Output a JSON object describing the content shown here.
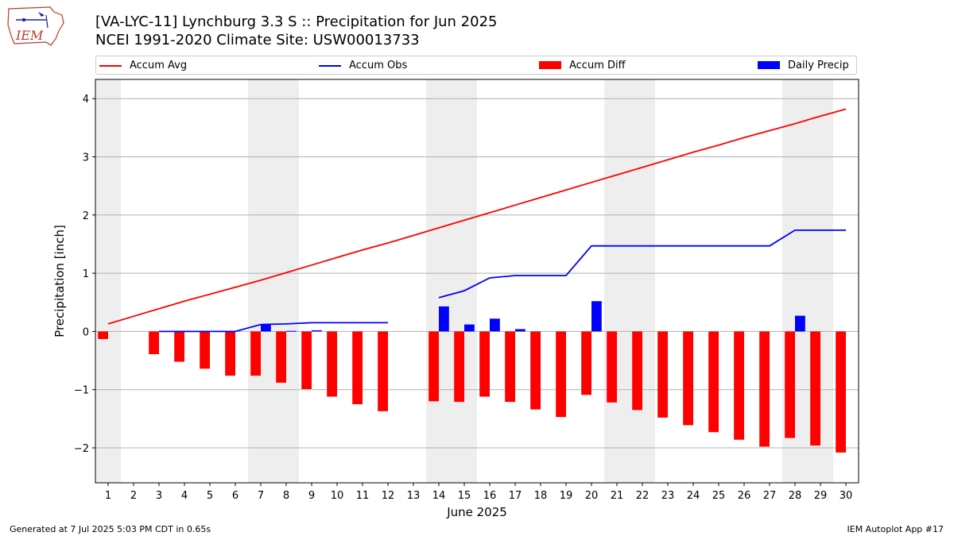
{
  "header": {
    "title_line1": "[VA-LYC-11] Lynchburg 3.3 S :: Precipitation for Jun 2025",
    "title_line2": "NCEI 1991-2020 Climate Site: USW00013733",
    "logo_text": "IEM"
  },
  "footer": {
    "left": "Generated at 7 Jul 2025 5:03 PM CDT in 0.65s",
    "right": "IEM Autoplot App #17"
  },
  "legend": [
    {
      "label": "Accum Avg",
      "color": "#ff0000",
      "kind": "line"
    },
    {
      "label": "Accum Obs",
      "color": "#0000ff",
      "kind": "line"
    },
    {
      "label": "Accum Diff",
      "color": "#ff0000",
      "kind": "bar"
    },
    {
      "label": "Daily Precip",
      "color": "#0000ff",
      "kind": "bar"
    }
  ],
  "chart_data": {
    "type": "bar",
    "xlabel": "June 2025",
    "ylabel": "Precipitation [inch]",
    "xlim": [
      0.5,
      30.5
    ],
    "ylim": [
      -2.6,
      4.33
    ],
    "yticks": [
      -2,
      -1,
      0,
      1,
      2,
      3,
      4
    ],
    "ytick_labels": [
      "−2",
      "−1",
      "0",
      "1",
      "2",
      "3",
      "4"
    ],
    "grid": "horizontal",
    "weekend_shading": [
      [
        0.5,
        1.5
      ],
      [
        6.5,
        8.5
      ],
      [
        13.5,
        15.5
      ],
      [
        20.5,
        22.5
      ],
      [
        27.5,
        29.5
      ]
    ],
    "days": [
      1,
      2,
      3,
      4,
      5,
      6,
      7,
      8,
      9,
      10,
      11,
      12,
      13,
      14,
      15,
      16,
      17,
      18,
      19,
      20,
      21,
      22,
      23,
      24,
      25,
      26,
      27,
      28,
      29,
      30
    ],
    "series": [
      {
        "name": "Accum Avg",
        "kind": "line",
        "color": "#ff0000",
        "values": [
          0.13,
          0.26,
          0.39,
          0.52,
          0.64,
          0.76,
          0.88,
          1.01,
          1.14,
          1.27,
          1.4,
          1.52,
          1.65,
          1.78,
          1.91,
          2.04,
          2.17,
          2.3,
          2.43,
          2.56,
          2.69,
          2.82,
          2.95,
          3.08,
          3.2,
          3.33,
          3.45,
          3.57,
          3.7,
          3.82
        ]
      },
      {
        "name": "Accum Obs",
        "kind": "line",
        "color": "#0000ff",
        "values": [
          null,
          null,
          0.0,
          0.0,
          0.0,
          0.0,
          0.12,
          0.13,
          0.15,
          0.15,
          0.15,
          0.15,
          null,
          0.58,
          0.7,
          0.92,
          0.96,
          0.96,
          0.96,
          1.47,
          1.47,
          1.47,
          1.47,
          1.47,
          1.47,
          1.47,
          1.47,
          1.74,
          1.74,
          1.74
        ]
      },
      {
        "name": "Accum Diff",
        "kind": "bar",
        "color": "#ff0000",
        "values": [
          -0.13,
          null,
          -0.39,
          -0.52,
          -0.64,
          -0.76,
          -0.76,
          -0.88,
          -0.99,
          -1.12,
          -1.25,
          -1.37,
          null,
          -1.2,
          -1.21,
          -1.12,
          -1.21,
          -1.34,
          -1.47,
          -1.09,
          -1.22,
          -1.35,
          -1.48,
          -1.61,
          -1.73,
          -1.86,
          -1.98,
          -1.83,
          -1.96,
          -2.08
        ]
      },
      {
        "name": "Daily Precip",
        "kind": "bar",
        "color": "#0000ff",
        "values": [
          0,
          null,
          0,
          0,
          0,
          0,
          0.12,
          0.01,
          0.02,
          0,
          0,
          0,
          null,
          0.43,
          0.12,
          0.22,
          0.04,
          0,
          0,
          0.52,
          0,
          0,
          0,
          0,
          0,
          0,
          0,
          0.27,
          0,
          0
        ]
      }
    ]
  }
}
